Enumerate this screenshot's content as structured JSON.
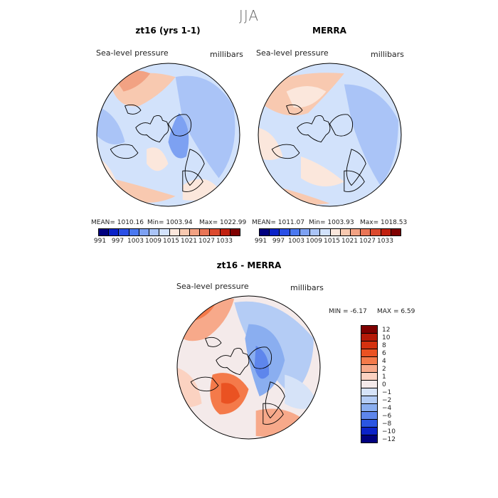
{
  "figure": {
    "season": "JJA"
  },
  "chart_data": [
    {
      "type": "heatmap",
      "title": "zt16 (yrs 1-1)",
      "field": "Sea-level pressure",
      "units": "millibars",
      "projection": "north polar stereographic",
      "stats": {
        "mean": "MEAN= 1010.16",
        "min": "Min= 1003.94",
        "max": "Max= 1022.99"
      },
      "levels": [
        "991",
        "997",
        "1003",
        "1009",
        "1015",
        "1021",
        "1027",
        "1033"
      ]
    },
    {
      "type": "heatmap",
      "title": "MERRA",
      "field": "Sea-level pressure",
      "units": "millibars",
      "projection": "north polar stereographic",
      "stats": {
        "mean": "MEAN= 1011.07",
        "min": "Min= 1003.93",
        "max": "Max= 1018.53"
      },
      "levels": [
        "991",
        "997",
        "1003",
        "1009",
        "1015",
        "1021",
        "1027",
        "1033"
      ]
    },
    {
      "type": "heatmap",
      "title": "zt16 - MERRA",
      "field": "Sea-level pressure",
      "units": "millibars",
      "projection": "north polar stereographic",
      "stats": {
        "min": "MIN =   -6.17",
        "max": "MAX =    6.59"
      },
      "levels": [
        "12",
        "10",
        "8",
        "6",
        "4",
        "2",
        "1",
        "0",
        "−1",
        "−2",
        "−4",
        "−6",
        "−8",
        "−10",
        "−12"
      ]
    }
  ],
  "colors": {
    "abs_scale": [
      "#00007f",
      "#0a22c8",
      "#2a4fe6",
      "#4a78f0",
      "#7da1f2",
      "#aac4f7",
      "#d2e2fb",
      "#fbe7dc",
      "#f8c9b0",
      "#f2a283",
      "#e97556",
      "#dc4a2e",
      "#c1200f",
      "#7f0000"
    ],
    "diff_scale": [
      "#7f0000",
      "#b51a08",
      "#d4310f",
      "#ea5222",
      "#f47a4a",
      "#f7a98a",
      "#fbd2c1",
      "#f4eaea",
      "#d6e3f8",
      "#b4ccf5",
      "#8aaef0",
      "#5e86ec",
      "#2a55e2",
      "#0b22c8",
      "#00007f"
    ],
    "land_outline": "#000000"
  }
}
